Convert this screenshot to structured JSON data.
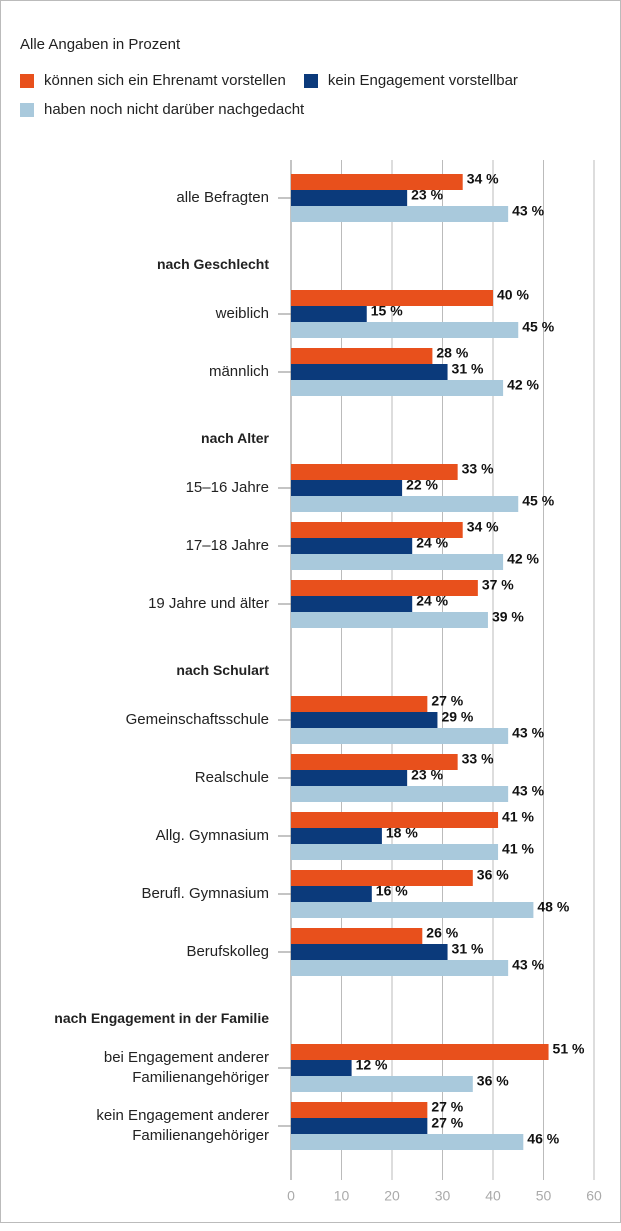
{
  "chart_data": {
    "type": "grouped_hbar",
    "subtitle": "Alle Angaben in Prozent",
    "categories": [
      "alle Befragten",
      "nach Geschlecht",
      "weiblich",
      "männlich",
      "nach Alter",
      "15–16 Jahre",
      "17–18 Jahre",
      "19 Jahre und älter",
      "nach Schulart",
      "Gemeinschaftsschule",
      "Realschule",
      "Allg. Gymnasium",
      "Berufl. Gymnasium",
      "Berufskolleg",
      "nach Engagement in der Familie",
      "bei Engagement anderer\nFamilienangehöriger",
      "kein Engagement anderer\nFamilienangehöriger"
    ],
    "series": [
      {
        "name": "können sich ein Ehrenamt vorstellen",
        "color": "#e8501c",
        "values": [
          34,
          null,
          40,
          28,
          null,
          33,
          34,
          37,
          null,
          27,
          33,
          41,
          36,
          26,
          null,
          51,
          27
        ],
        "value_labels": [
          "34 %",
          null,
          "40 %",
          "28 %",
          null,
          "33 %",
          "34 %",
          "37 %",
          null,
          "27 %",
          "33 %",
          "41 %",
          "36 %",
          "26 %",
          null,
          "51 %",
          "27 %"
        ]
      },
      {
        "name": "kein Engagement vorstellbar",
        "color": "#0b3a7b",
        "values": [
          23,
          null,
          15,
          31,
          null,
          22,
          24,
          24,
          null,
          29,
          23,
          18,
          16,
          31,
          null,
          12,
          27
        ],
        "value_labels": [
          "23 %",
          null,
          "15 %",
          "31 %",
          null,
          "22 %",
          "24 %",
          "24 %",
          null,
          "29 %",
          "23 %",
          "18 %",
          "16 %",
          "31 %",
          null,
          "12 %",
          "27 %"
        ]
      },
      {
        "name": "haben noch nicht darüber nachgedacht",
        "color": "#a9c9dc",
        "values": [
          43,
          null,
          45,
          42,
          null,
          45,
          42,
          39,
          null,
          43,
          43,
          41,
          48,
          43,
          null,
          36,
          46
        ],
        "value_labels": [
          "43 %",
          null,
          "45 %",
          "42 %",
          null,
          "45 %",
          "42 %",
          "39 %",
          null,
          "43 %",
          "43 %",
          "41 %",
          "48 %",
          "43 %",
          null,
          "36 %",
          "46 %"
        ]
      }
    ],
    "xlim": [
      0,
      60
    ],
    "xticks": [
      0,
      10,
      20,
      30,
      40,
      50,
      60
    ],
    "grid": true
  }
}
